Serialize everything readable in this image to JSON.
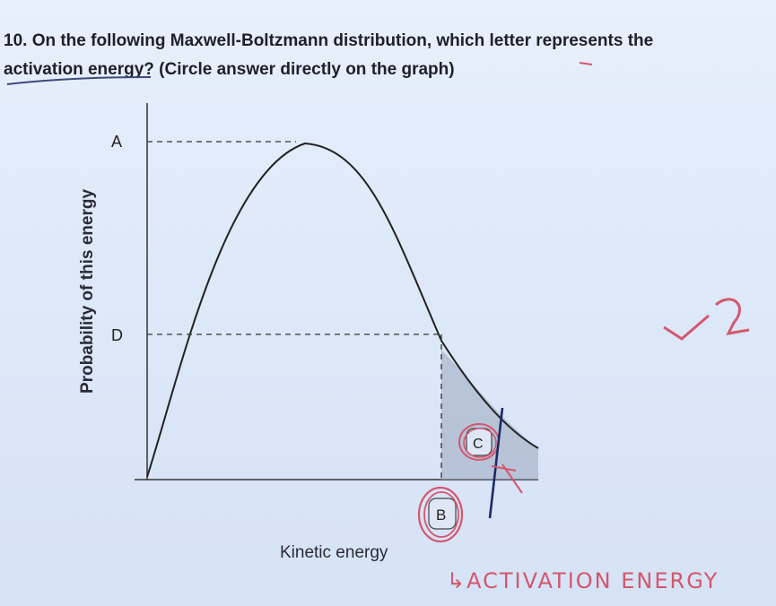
{
  "question": {
    "line1": "10. On the following Maxwell-Boltzmann distribution, which letter represents the",
    "line2": "activation energy? (Circle answer directly on the graph)"
  },
  "chart_data": {
    "type": "line",
    "title": "",
    "xlabel": "Kinetic energy",
    "ylabel": "Probability of this energy",
    "point_labels": [
      "A",
      "D",
      "C",
      "B"
    ],
    "shaded_region": "area under curve to the right of B",
    "series": [
      {
        "values_description": "Maxwell-Boltzmann distribution curve"
      }
    ]
  },
  "handwriting": {
    "score": "✓2",
    "note": "↳ACTIVATION ENERGY"
  },
  "colors": {
    "ink": "#1f1f2a",
    "annotation": "#d4576d",
    "shade": "#9aa7bf"
  }
}
